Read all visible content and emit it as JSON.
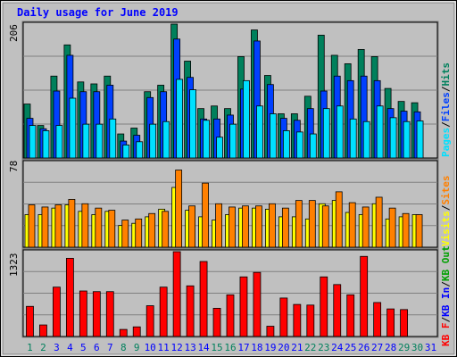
{
  "title": "Daily usage for June 2019",
  "colors": {
    "background": "#c0c0c0",
    "plot": "#c0c0c0",
    "title": "#0000ff",
    "hits": "#00805c",
    "files": "#0040ff",
    "pages": "#00e0ff",
    "visits": "#ffff00",
    "sites": "#ff8000",
    "kb_in": "#0000ff",
    "kb_out": "#00a000",
    "kb_f": "#ff0000",
    "weekend_day": "#00805c",
    "weekday": "#0000ff"
  },
  "chart_data": [
    {
      "type": "bar",
      "panel": "top",
      "ymax_label": "206",
      "ylim": [
        0,
        206
      ],
      "categories": [
        "1",
        "2",
        "3",
        "4",
        "5",
        "6",
        "7",
        "8",
        "9",
        "10",
        "11",
        "12",
        "13",
        "14",
        "15",
        "16",
        "17",
        "18",
        "19",
        "20",
        "21",
        "22",
        "23",
        "24",
        "25",
        "26",
        "27",
        "28",
        "29",
        "30",
        "31"
      ],
      "weekend_days": [
        "1",
        "2",
        "8",
        "9",
        "15",
        "16",
        "22",
        "23",
        "29",
        "30"
      ],
      "legend": [
        {
          "label": "Pages",
          "color": "#00e0ff"
        },
        {
          "label": "/",
          "color": "#000000"
        },
        {
          "label": "Files",
          "color": "#0040ff"
        },
        {
          "label": "/",
          "color": "#000000"
        },
        {
          "label": "Hits",
          "color": "#00805c"
        }
      ],
      "series": [
        {
          "name": "Hits",
          "values": [
            83,
            50,
            126,
            174,
            117,
            114,
            126,
            37,
            46,
            102,
            112,
            206,
            149,
            76,
            80,
            76,
            156,
            197,
            127,
            68,
            68,
            95,
            189,
            158,
            145,
            167,
            156,
            107,
            87,
            85,
            0
          ]
        },
        {
          "name": "Files",
          "values": [
            61,
            45,
            103,
            158,
            102,
            102,
            112,
            26,
            35,
            93,
            102,
            183,
            124,
            60,
            60,
            66,
            106,
            180,
            113,
            61,
            58,
            76,
            103,
            126,
            119,
            126,
            119,
            76,
            72,
            71,
            0
          ]
        },
        {
          "name": "Pages",
          "values": [
            50,
            42,
            50,
            92,
            52,
            52,
            60,
            20,
            25,
            52,
            56,
            121,
            105,
            58,
            32,
            52,
            119,
            80,
            68,
            42,
            40,
            37,
            76,
            80,
            60,
            56,
            80,
            62,
            56,
            57,
            0
          ]
        }
      ]
    },
    {
      "type": "bar",
      "panel": "middle",
      "ymax_label": "78",
      "ylim": [
        0,
        78
      ],
      "legend": [
        {
          "label": "Visits",
          "color": "#ffff00"
        },
        {
          "label": "/",
          "color": "#000000"
        },
        {
          "label": "Sites",
          "color": "#ff8000"
        }
      ],
      "series": [
        {
          "name": "Visits",
          "values": [
            30,
            30,
            36,
            39,
            33,
            30,
            33,
            20,
            22,
            28,
            35,
            55,
            34,
            28,
            25,
            30,
            36,
            36,
            35,
            28,
            28,
            26,
            40,
            43,
            32,
            30,
            40,
            26,
            28,
            30,
            0
          ]
        },
        {
          "name": "Sites",
          "values": [
            39,
            37,
            39,
            44,
            40,
            36,
            34,
            25,
            26,
            31,
            33,
            71,
            38,
            59,
            40,
            37,
            38,
            38,
            40,
            36,
            43,
            43,
            38,
            51,
            41,
            37,
            46,
            36,
            31,
            30,
            0
          ]
        }
      ]
    },
    {
      "type": "bar",
      "panel": "bottom",
      "ymax_label": "1323",
      "ylim": [
        0,
        1323
      ],
      "legend": [
        {
          "label": "KB F",
          "color": "#ff0000"
        },
        {
          "label": "/",
          "color": "#000000"
        },
        {
          "label": "KB In",
          "color": "#0000ff"
        },
        {
          "label": "/",
          "color": "#000000"
        },
        {
          "label": "KB Out",
          "color": "#00a000"
        }
      ],
      "series": [
        {
          "name": "KB F",
          "values": [
            470,
            180,
            770,
            1220,
            710,
            700,
            700,
            110,
            150,
            480,
            770,
            1330,
            790,
            1170,
            440,
            650,
            930,
            1000,
            160,
            600,
            500,
            490,
            930,
            810,
            650,
            1250,
            530,
            430,
            420,
            0,
            0
          ]
        }
      ]
    }
  ]
}
